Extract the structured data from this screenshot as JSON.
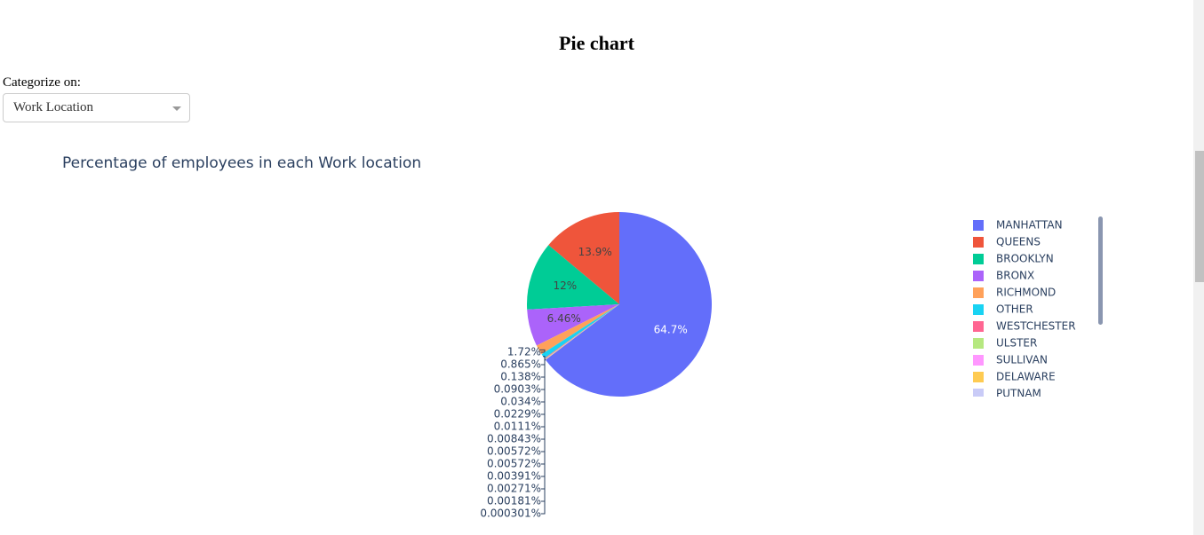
{
  "header": {
    "title": "Pie chart"
  },
  "control": {
    "label": "Categorize on:",
    "value": "Work Location"
  },
  "chart_data": {
    "type": "pie",
    "title": "Percentage of employees in each Work location",
    "categories": [
      "MANHATTAN",
      "QUEENS",
      "BROOKLYN",
      "BRONX",
      "RICHMOND",
      "OTHER",
      "WESTCHESTER",
      "ULSTER",
      "SULLIVAN",
      "DELAWARE",
      "PUTNAM",
      null,
      null,
      null,
      null,
      null,
      null,
      null
    ],
    "values": [
      64.7,
      13.9,
      12,
      6.46,
      1.72,
      0.865,
      0.138,
      0.0903,
      0.034,
      0.0229,
      0.0111,
      0.00843,
      0.00572,
      0.00572,
      0.00391,
      0.00271,
      0.00181,
      0.000301
    ],
    "value_labels": [
      "64.7%",
      "13.9%",
      "12%",
      "6.46%",
      "1.72%",
      "0.865%",
      "0.138%",
      "0.0903%",
      "0.034%",
      "0.0229%",
      "0.0111%",
      "0.00843%",
      "0.00572%",
      "0.00572%",
      "0.00391%",
      "0.00271%",
      "0.00181%",
      "0.000301%"
    ],
    "colors": [
      "#636efa",
      "#ef553b",
      "#00cc96",
      "#ab63fa",
      "#ffa15a",
      "#19d3f3",
      "#ff6692",
      "#b6e880",
      "#ff97ff",
      "#fecb52",
      "#c9cbf7",
      "#ef553b",
      "#00cc96",
      "#ab63fa",
      "#ffa15a",
      "#19d3f3",
      "#ff6692",
      "#b6e880"
    ],
    "legend": "right"
  }
}
